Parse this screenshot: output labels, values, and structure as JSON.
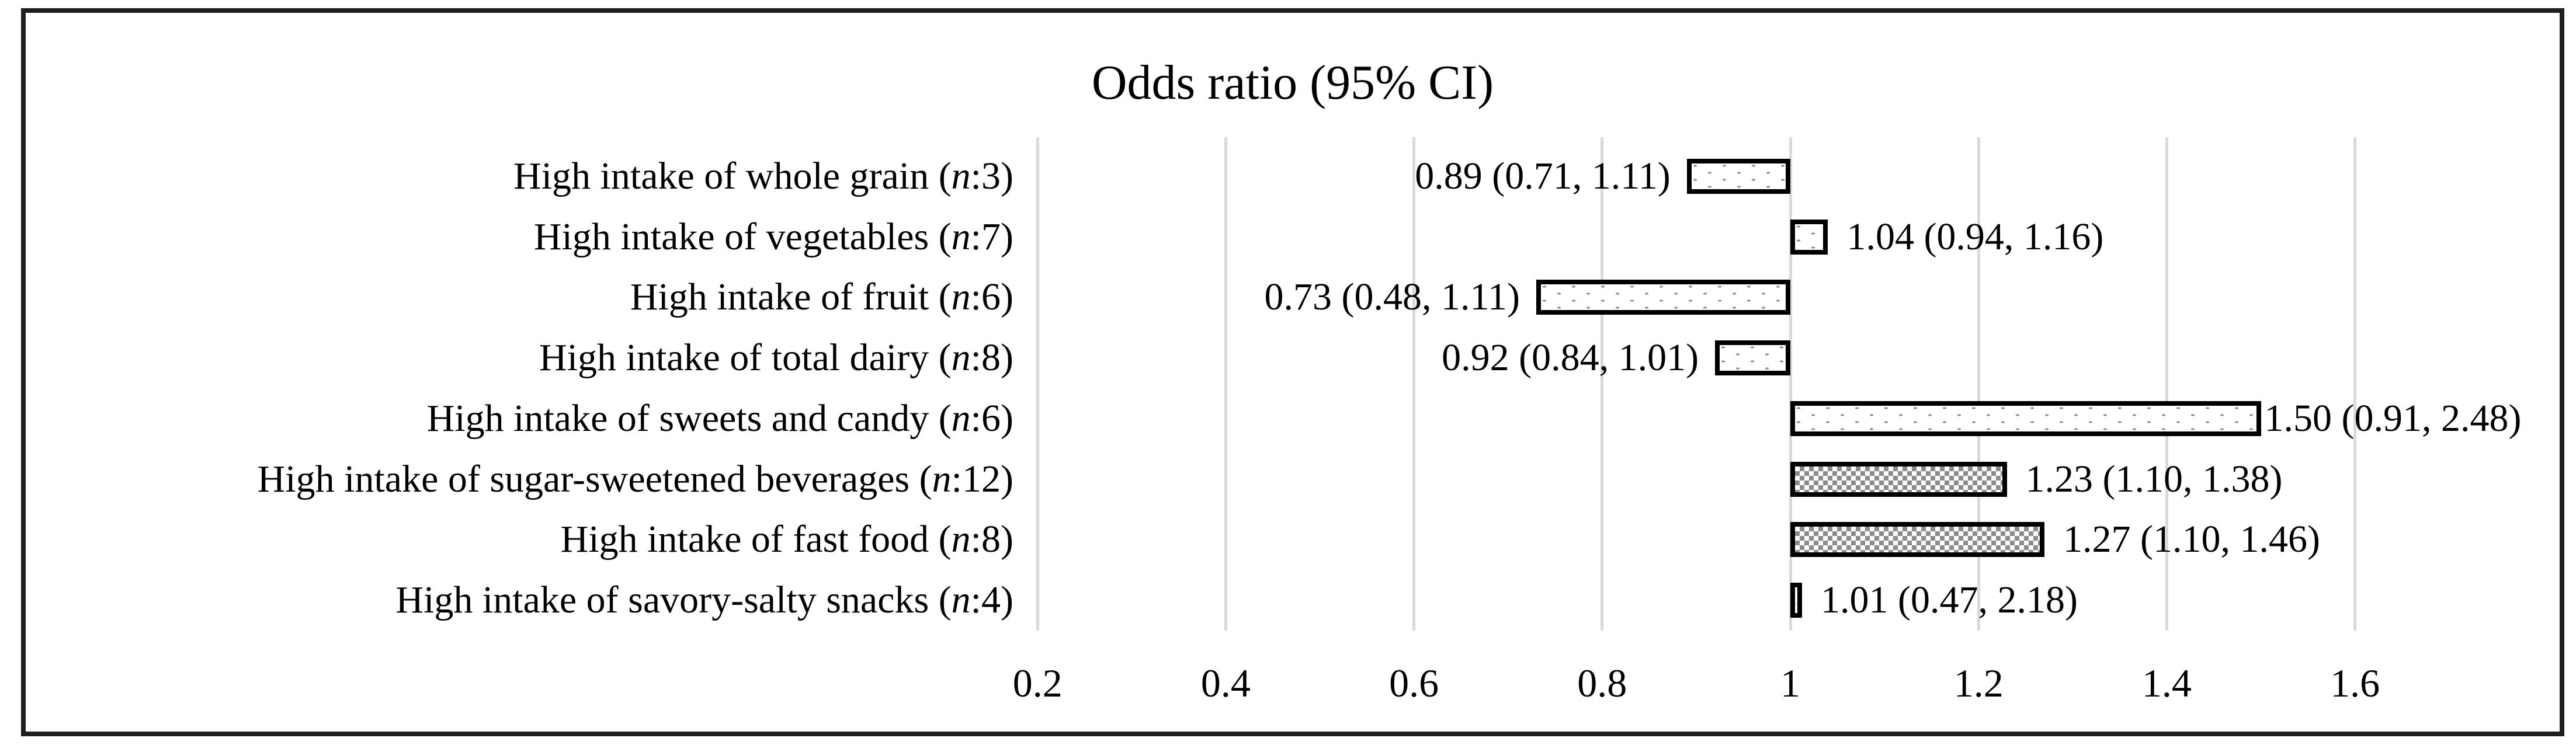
{
  "figure": {
    "background": "#ffffff",
    "frame_border_color": "#1f1f1f"
  },
  "chart_data": {
    "type": "bar",
    "orientation": "horizontal",
    "title": "Odds ratio (95% CI)",
    "baseline": 1,
    "grid": true,
    "legend": null,
    "xlabel": "",
    "ylabel": "",
    "axis": {
      "min": 0.187,
      "max": 1.817,
      "tick_labels": [
        "0.2",
        "0.4",
        "0.6",
        "0.8",
        "1",
        "1.2",
        "1.4",
        "1.6"
      ],
      "tick_values": [
        0.2,
        0.4,
        0.6,
        0.8,
        1.0,
        1.2,
        1.4,
        1.6
      ]
    },
    "rows": [
      {
        "label": "High intake of whole grain",
        "n": "3",
        "display_label": "High intake of whole grain (n:3)",
        "or": 0.89,
        "ci_low": 0.71,
        "ci_high": 1.11,
        "value_label": "0.89 (0.71, 1.11)",
        "pattern": "dotted"
      },
      {
        "label": "High intake of vegetables",
        "n": "7",
        "display_label": "High intake of vegetables (n:7)",
        "or": 1.04,
        "ci_low": 0.94,
        "ci_high": 1.16,
        "value_label": "1.04 (0.94, 1.16)",
        "pattern": "dotted"
      },
      {
        "label": "High intake of fruit",
        "n": "6",
        "display_label": "High intake of fruit (n:6)",
        "or": 0.73,
        "ci_low": 0.48,
        "ci_high": 1.11,
        "value_label": "0.73 (0.48, 1.11)",
        "pattern": "dotted"
      },
      {
        "label": "High intake of total dairy",
        "n": "8",
        "display_label": "High intake of total dairy (n:8)",
        "or": 0.92,
        "ci_low": 0.84,
        "ci_high": 1.01,
        "value_label": "0.92 (0.84, 1.01)",
        "pattern": "dotted"
      },
      {
        "label": "High intake of sweets and candy",
        "n": "6",
        "display_label": "High intake of sweets and candy (n:6)",
        "or": 1.5,
        "ci_low": 0.91,
        "ci_high": 2.48,
        "value_label": "1.50 (0.91, 2.48)",
        "pattern": "dotted"
      },
      {
        "label": "High intake of sugar-sweetened beverages",
        "n": "12",
        "display_label": "High intake of sugar-sweetened beverages (n:12)",
        "or": 1.23,
        "ci_low": 1.1,
        "ci_high": 1.38,
        "value_label": "1.23 (1.10, 1.38)",
        "pattern": "checkerboard"
      },
      {
        "label": "High intake of fast food",
        "n": "8",
        "display_label": "High intake of fast food (n:8)",
        "or": 1.27,
        "ci_low": 1.1,
        "ci_high": 1.46,
        "value_label": "1.27 (1.10, 1.46)",
        "pattern": "checkerboard"
      },
      {
        "label": "High intake of savory-salty snacks",
        "n": "4",
        "display_label": "High intake of savory-salty snacks (n:4)",
        "or": 1.01,
        "ci_low": 0.47,
        "ci_high": 2.18,
        "value_label": "1.01 (0.47, 2.18)",
        "pattern": "dotted"
      }
    ]
  },
  "colors": {
    "text": "#000000",
    "gridline": "#d9d9d9",
    "bar_border": "#000000",
    "pattern_gray": "#8c8c8c",
    "bar_fill": "#ffffff"
  }
}
